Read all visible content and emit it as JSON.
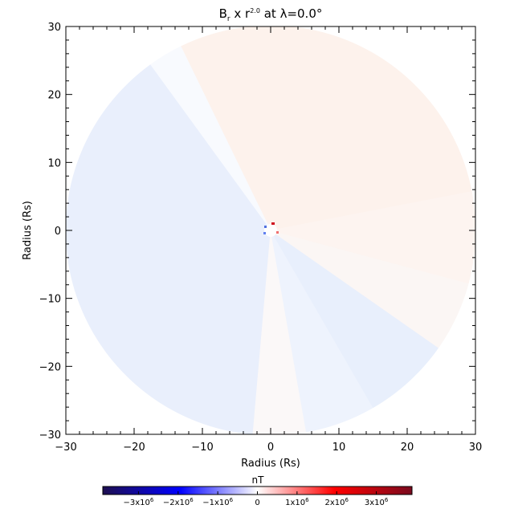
{
  "chart_data": {
    "type": "heatmap",
    "title": {
      "base": "B",
      "sub": "r",
      "mid": " x r",
      "sup": "2.0",
      "tail": " at λ=0.0°"
    },
    "xlabel": "Radius (Rs)",
    "ylabel": "Radius (Rs)",
    "xlim": [
      -30,
      30
    ],
    "ylim": [
      -30,
      30
    ],
    "xticks": [
      "−30",
      "−20",
      "−10",
      "0",
      "10",
      "20",
      "30"
    ],
    "yticks": [
      "−30",
      "−20",
      "−10",
      "0",
      "10",
      "20",
      "30"
    ],
    "tick_values": [
      -30,
      -20,
      -10,
      0,
      10,
      20,
      30
    ],
    "minor_tick_step": 2,
    "domain_radius": 30,
    "sectors": [
      {
        "from_deg": 11,
        "to_deg": 116,
        "color": "#fdf2ec"
      },
      {
        "from_deg": 116,
        "to_deg": 126,
        "color": "#f8fafe"
      },
      {
        "from_deg": 126,
        "to_deg": 265,
        "color": "#e9effc"
      },
      {
        "from_deg": 265,
        "to_deg": 280,
        "color": "#fbf8f8"
      },
      {
        "from_deg": 280,
        "to_deg": 300,
        "color": "#eef3fd"
      },
      {
        "from_deg": 300,
        "to_deg": 325,
        "color": "#e8effc"
      },
      {
        "from_deg": 325,
        "to_deg": 345,
        "color": "#fbf6f4"
      },
      {
        "from_deg": 345,
        "to_deg": 371,
        "color": "#fdf4f0"
      }
    ],
    "colorbar": {
      "label": "nT",
      "range": [
        -3900000.0,
        3900000.0
      ],
      "ticks": [
        {
          "value": -3000000.0,
          "label": "−3x10",
          "exp": "6"
        },
        {
          "value": -2000000.0,
          "label": "−2x10",
          "exp": "6"
        },
        {
          "value": -1000000.0,
          "label": "−1x10",
          "exp": "6"
        },
        {
          "value": 0,
          "label": "0",
          "exp": ""
        },
        {
          "value": 1000000.0,
          "label": "1x10",
          "exp": "6"
        },
        {
          "value": 2000000.0,
          "label": "2x10",
          "exp": "6"
        },
        {
          "value": 3000000.0,
          "label": "3x10",
          "exp": "6"
        }
      ],
      "colors": [
        "#1e0f50",
        "#0000ff",
        "#ffffff",
        "#ff0000",
        "#7a0a1e"
      ]
    }
  }
}
